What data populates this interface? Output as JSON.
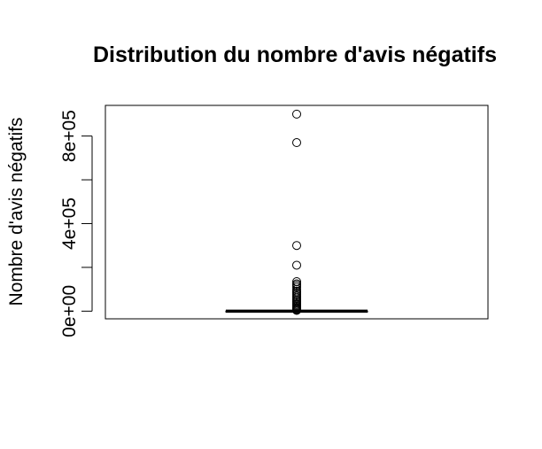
{
  "chart_data": {
    "type": "boxplot",
    "title": "Distribution du nombre d'avis négatifs",
    "xlabel": "",
    "ylabel": "Nombre d'avis négatifs",
    "ylim": [
      -35000,
      940000
    ],
    "y_ticks": [
      0,
      200000,
      400000,
      600000,
      800000
    ],
    "y_tick_labels": [
      {
        "value": 0,
        "label": "0e+00"
      },
      {
        "value": 400000,
        "label": "4e+05"
      },
      {
        "value": 800000,
        "label": "8e+05"
      }
    ],
    "box": {
      "min": 0,
      "q1": 0,
      "median": 0,
      "q3": 500,
      "whisker_high": 1200
    },
    "outliers": [
      900000,
      770000,
      300000,
      210000,
      135000,
      125000,
      118000,
      110000,
      100000,
      92000,
      85000,
      78000,
      70000,
      63000,
      56000,
      50000,
      44000,
      38000,
      32000,
      27000,
      22000,
      17000,
      13000,
      9000,
      6000,
      3500
    ],
    "grid": false,
    "legend": "none"
  }
}
